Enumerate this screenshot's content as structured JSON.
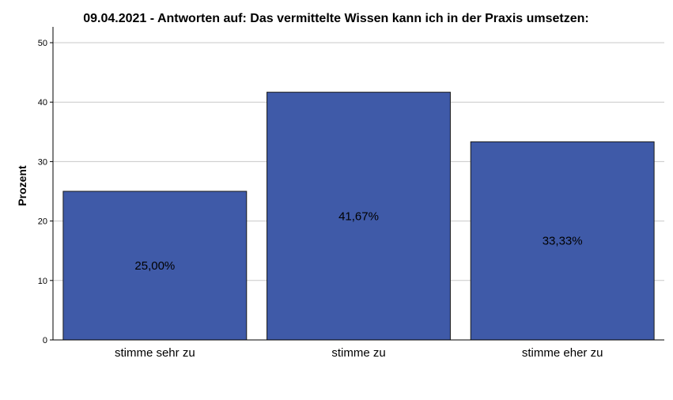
{
  "chart_data": {
    "type": "bar",
    "title": "09.04.2021 - Antworten auf: Das vermittelte Wissen kann ich in der Praxis umsetzen:",
    "xlabel": "",
    "ylabel": "Prozent",
    "categories": [
      "stimme sehr zu",
      "stimme zu",
      "stimme eher zu"
    ],
    "values": [
      25.0,
      41.67,
      33.33
    ],
    "data_labels": [
      "25,00%",
      "41,67%",
      "33,33%"
    ],
    "ylim": [
      0,
      50
    ],
    "yticks": [
      0,
      10,
      20,
      30,
      40,
      50
    ],
    "ytick_labels": [
      "0",
      "10",
      "20",
      "30",
      "40",
      "50"
    ],
    "grid": true,
    "bar_color": "#3f5aa8",
    "bar_edge_color": "#1a1a1a",
    "grid_color": "#c8c8c8"
  }
}
